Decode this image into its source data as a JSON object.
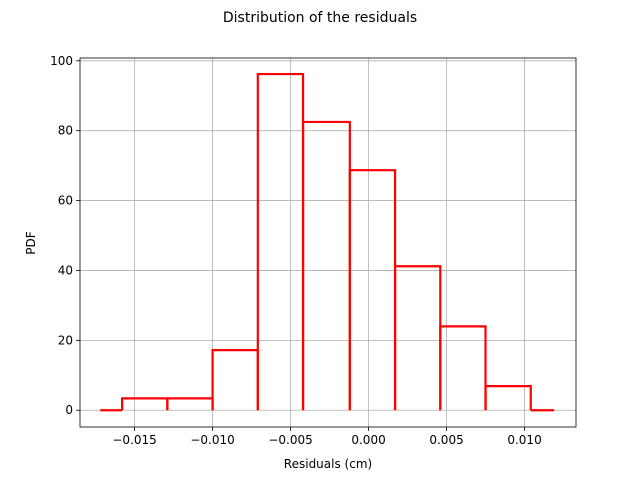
{
  "chart_data": {
    "type": "histogram",
    "title": "Distribution of the residuals",
    "xlabel": "Residuals (cm)",
    "ylabel": "PDF",
    "xlim": [
      -0.0185,
      0.0133
    ],
    "ylim": [
      -4.8,
      100.8
    ],
    "xticks": [
      -0.015,
      -0.01,
      -0.005,
      0.0,
      0.005,
      0.01
    ],
    "xtick_labels": [
      "−0.015",
      "−0.010",
      "−0.005",
      "0.000",
      "0.005",
      "0.010"
    ],
    "yticks": [
      0,
      20,
      40,
      60,
      80,
      100
    ],
    "ytick_labels": [
      "0",
      "20",
      "40",
      "60",
      "80",
      "100"
    ],
    "grid": true,
    "line_color": "#ff0000",
    "bins": [
      {
        "x0": -0.0172,
        "x1": -0.0158,
        "value": 0
      },
      {
        "x0": -0.0158,
        "x1": -0.0129,
        "value": 3.4
      },
      {
        "x0": -0.0129,
        "x1": -0.01,
        "value": 3.4
      },
      {
        "x0": -0.01,
        "x1": -0.0071,
        "value": 17.2
      },
      {
        "x0": -0.0071,
        "x1": -0.0042,
        "value": 96.2
      },
      {
        "x0": -0.0042,
        "x1": -0.0012,
        "value": 82.5
      },
      {
        "x0": -0.0012,
        "x1": 0.0017,
        "value": 68.7
      },
      {
        "x0": 0.0017,
        "x1": 0.0046,
        "value": 41.2
      },
      {
        "x0": 0.0046,
        "x1": 0.0075,
        "value": 24.0
      },
      {
        "x0": 0.0075,
        "x1": 0.0104,
        "value": 6.9
      },
      {
        "x0": 0.0104,
        "x1": 0.0119,
        "value": 0
      }
    ]
  }
}
